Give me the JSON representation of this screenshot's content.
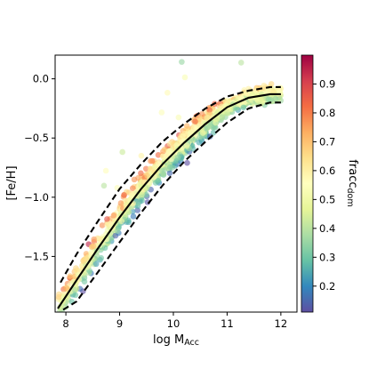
{
  "chart_data": {
    "type": "scatter",
    "title": "",
    "xlabel": {
      "main": "log M",
      "sub": "Acc"
    },
    "ylabel": "[Fe/H]",
    "xlim": [
      7.8,
      12.3
    ],
    "ylim": [
      -1.97,
      0.2
    ],
    "xticks": [
      8,
      9,
      10,
      11,
      12
    ],
    "yticks": [
      0.0,
      -0.5,
      -1.0,
      -1.5
    ],
    "xtick_labels": [
      "8",
      "9",
      "10",
      "11",
      "12"
    ],
    "ytick_labels": [
      "0.0",
      "−0.5",
      "−1.0",
      "−1.5"
    ],
    "grid": false,
    "colorbar": {
      "label": {
        "main": "fracc",
        "sub": "dom"
      },
      "range": [
        0.11,
        1.0
      ],
      "ticks": [
        0.2,
        0.3,
        0.4,
        0.5,
        0.6,
        0.7,
        0.8,
        0.9
      ],
      "tick_labels": [
        "0.2",
        "0.3",
        "0.4",
        "0.5",
        "0.6",
        "0.7",
        "0.8",
        "0.9"
      ],
      "colormap": "Spectral_r"
    },
    "scatter_model": {
      "n_points": 1300,
      "x_range": [
        7.85,
        12.0
      ],
      "spread_y": 0.085,
      "color_gradient": 0.9,
      "color_noise": 0.09,
      "marker_color_stops": [
        "#5e4fa2",
        "#3288bd",
        "#66c2a5",
        "#abdda4",
        "#e6f598",
        "#ffffbf",
        "#fee08b",
        "#fdae61",
        "#f46d43",
        "#d53e4f",
        "#9e0142"
      ]
    },
    "lines": [
      {
        "name": "",
        "style": "solid",
        "color": "#000000",
        "x": [
          7.85,
          8.2,
          8.6,
          9.0,
          9.4,
          9.8,
          10.2,
          10.6,
          11.0,
          11.4,
          11.8,
          12.0
        ],
        "y": [
          -1.94,
          -1.7,
          -1.43,
          -1.17,
          -0.93,
          -0.72,
          -0.54,
          -0.38,
          -0.24,
          -0.16,
          -0.13,
          -0.13
        ]
      },
      {
        "name": "",
        "style": "dashed",
        "color": "#000000",
        "x": [
          7.9,
          8.2,
          8.6,
          9.0,
          9.4,
          9.8,
          10.2,
          10.6,
          11.0,
          11.4,
          11.8,
          12.0
        ],
        "y": [
          -1.72,
          -1.48,
          -1.2,
          -0.93,
          -0.72,
          -0.53,
          -0.38,
          -0.25,
          -0.15,
          -0.1,
          -0.07,
          -0.07
        ]
      },
      {
        "name": "",
        "style": "dashed",
        "color": "#000000",
        "x": [
          7.95,
          8.2,
          8.6,
          9.0,
          9.4,
          9.8,
          10.2,
          10.6,
          11.0,
          11.4,
          11.8,
          12.0
        ],
        "y": [
          -1.95,
          -1.88,
          -1.63,
          -1.38,
          -1.13,
          -0.9,
          -0.7,
          -0.53,
          -0.37,
          -0.25,
          -0.2,
          -0.2
        ]
      }
    ]
  }
}
